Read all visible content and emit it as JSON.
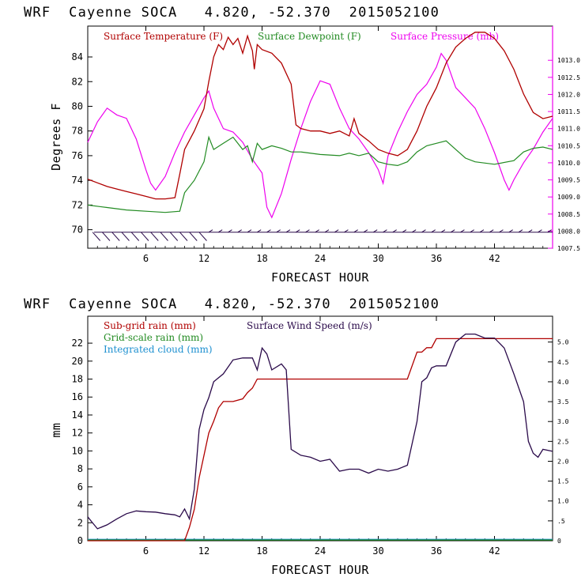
{
  "panels": [
    {
      "header": "WRF  Cayenne SOCA   4.820, -52.370  2015052100",
      "xlabel": "FORECAST HOUR",
      "ylabel": "Degrees F",
      "x_ticks": [
        "6",
        "12",
        "18",
        "24",
        "30",
        "36",
        "42"
      ],
      "y_ticks": [
        "70",
        "72",
        "74",
        "76",
        "78",
        "80",
        "82",
        "84"
      ],
      "y2_ticks": [
        "1007.5",
        "1008.0",
        "1008.5",
        "1009.0",
        "1009.5",
        "1010.0",
        "1010.5",
        "1011.0",
        "1011.5",
        "1012.0",
        "1012.5",
        "1013.0"
      ],
      "legend": [
        "Surface Temperature (F)",
        "Surface Dewpoint (F)",
        "Surface Pressure (mb)"
      ]
    },
    {
      "header": "WRF  Cayenne SOCA   4.820, -52.370  2015052100",
      "xlabel": "FORECAST HOUR",
      "ylabel": "mm",
      "x_ticks": [
        "6",
        "12",
        "18",
        "24",
        "30",
        "36",
        "42"
      ],
      "y_ticks": [
        "0",
        "2",
        "4",
        "6",
        "8",
        "10",
        "12",
        "14",
        "16",
        "18",
        "20",
        "22"
      ],
      "y2_ticks": [
        "0",
        ".5",
        "1.0",
        "1.5",
        "2.0",
        "2.5",
        "3.0",
        "3.5",
        "4.0",
        "4.5",
        "5.0"
      ],
      "legend": [
        "Sub-grid rain (mm)",
        "Grid-scale rain (mm)",
        "Integrated cloud (mm)",
        "Surface Wind Speed (m/s)"
      ]
    }
  ],
  "colors": {
    "temperature": "#b00000",
    "dewpoint": "#228b22",
    "pressure": "#ee00ee",
    "subgrid_rain": "#b00000",
    "gridscale_rain": "#228b22",
    "cloud": "#1e90d0",
    "wind": "#2a0a4a"
  },
  "chart_data": [
    {
      "type": "line",
      "title": "WRF  Cayenne SOCA   4.820, -52.370  2015052100",
      "xlabel": "FORECAST HOUR",
      "ylabel": "Degrees F",
      "xlim": [
        0,
        48
      ],
      "ylim": [
        68.5,
        86.5
      ],
      "y2lim": [
        1007.5,
        1014.0
      ],
      "series": [
        {
          "name": "Surface Temperature (F)",
          "axis": "left",
          "x": [
            0,
            1,
            2,
            3,
            4,
            5,
            6,
            7,
            8,
            9,
            9.5,
            10,
            11,
            12,
            12.5,
            13,
            13.5,
            14,
            14.5,
            15,
            15.5,
            16,
            16.5,
            17,
            17.2,
            17.5,
            18,
            19,
            20,
            21,
            21.5,
            22,
            23,
            24,
            25,
            26,
            27,
            27.5,
            28,
            29,
            30,
            31,
            32,
            33,
            34,
            35,
            36,
            37,
            38,
            39,
            40,
            41,
            42,
            43,
            44,
            45,
            46,
            47,
            48
          ],
          "y": [
            74.1,
            73.8,
            73.5,
            73.3,
            73.1,
            72.9,
            72.7,
            72.5,
            72.5,
            72.6,
            74.5,
            76.5,
            78.0,
            79.8,
            82.0,
            84.0,
            85.0,
            84.6,
            85.6,
            85.0,
            85.5,
            84.3,
            85.7,
            84.5,
            83.0,
            85.0,
            84.6,
            84.3,
            83.5,
            81.8,
            78.5,
            78.2,
            78.0,
            78.0,
            77.8,
            78.0,
            77.6,
            79.0,
            77.8,
            77.2,
            76.5,
            76.2,
            76.0,
            76.5,
            78.0,
            80.0,
            81.5,
            83.5,
            84.8,
            85.5,
            86.0,
            86.0,
            85.5,
            84.5,
            83.0,
            81.0,
            79.5,
            79.0,
            79.2
          ]
        },
        {
          "name": "Surface Dewpoint (F)",
          "axis": "left",
          "x": [
            0,
            2,
            4,
            6,
            8,
            9.5,
            10,
            11,
            12,
            12.5,
            13,
            14,
            15,
            16,
            16.5,
            17,
            17.5,
            18,
            19,
            20,
            21,
            22,
            24,
            26,
            27,
            28,
            29,
            30,
            31,
            32,
            33,
            34,
            35,
            36,
            37,
            38,
            39,
            40,
            42,
            44,
            45,
            46,
            47,
            48
          ],
          "y": [
            72.0,
            71.8,
            71.6,
            71.5,
            71.4,
            71.5,
            73.0,
            74.0,
            75.5,
            77.5,
            76.5,
            77.0,
            77.5,
            76.5,
            76.8,
            75.5,
            77.0,
            76.5,
            76.8,
            76.6,
            76.3,
            76.3,
            76.1,
            76.0,
            76.2,
            76.0,
            76.2,
            75.5,
            75.3,
            75.2,
            75.5,
            76.3,
            76.8,
            77.0,
            77.2,
            76.5,
            75.8,
            75.5,
            75.3,
            75.6,
            76.3,
            76.6,
            76.7,
            76.5
          ]
        },
        {
          "name": "Surface Pressure (mb)",
          "axis": "right",
          "x": [
            0,
            1,
            2,
            3,
            4,
            5,
            6,
            6.5,
            7,
            8,
            9,
            10,
            11,
            12,
            12.5,
            13,
            14,
            15,
            16,
            17,
            18,
            18.5,
            19,
            20,
            21,
            22,
            23,
            24,
            25,
            26,
            27,
            28,
            29,
            30,
            30.5,
            31,
            32,
            33,
            34,
            35,
            36,
            36.5,
            37,
            38,
            39,
            40,
            41,
            42,
            43,
            43.5,
            44,
            45,
            46,
            47,
            48
          ],
          "y": [
            1010.6,
            1011.2,
            1011.6,
            1011.4,
            1011.3,
            1010.7,
            1009.8,
            1009.4,
            1009.2,
            1009.6,
            1010.3,
            1010.9,
            1011.4,
            1011.9,
            1012.1,
            1011.6,
            1011.0,
            1010.9,
            1010.6,
            1010.1,
            1009.7,
            1008.7,
            1008.4,
            1009.1,
            1010.1,
            1011.0,
            1011.8,
            1012.4,
            1012.3,
            1011.6,
            1011.0,
            1010.7,
            1010.3,
            1009.8,
            1009.4,
            1010.2,
            1010.9,
            1011.5,
            1012.0,
            1012.3,
            1012.8,
            1013.2,
            1013.0,
            1012.2,
            1011.9,
            1011.6,
            1011.0,
            1010.3,
            1009.5,
            1009.2,
            1009.5,
            1010.0,
            1010.4,
            1010.9,
            1011.3
          ]
        }
      ],
      "wind_barbs": {
        "x_start": 0,
        "x_end": 48,
        "baseline": 69.8,
        "count": 48
      }
    },
    {
      "type": "line",
      "title": "WRF  Cayenne SOCA   4.820, -52.370  2015052100",
      "xlabel": "FORECAST HOUR",
      "ylabel": "mm",
      "xlim": [
        0,
        48
      ],
      "ylim": [
        0,
        25
      ],
      "y2lim": [
        0,
        5.65
      ],
      "series": [
        {
          "name": "Sub-grid rain (mm)",
          "axis": "left",
          "x": [
            0,
            10,
            10.5,
            11,
            11.5,
            12,
            12.5,
            13,
            13.5,
            14,
            15,
            16,
            16.5,
            17,
            17.5,
            18,
            20,
            24,
            30,
            33,
            34,
            34.5,
            35,
            35.5,
            36,
            48
          ],
          "y": [
            0,
            0,
            1.5,
            3.5,
            7.0,
            9.5,
            12.0,
            13.3,
            14.8,
            15.5,
            15.5,
            15.8,
            16.5,
            17.0,
            18.0,
            18.0,
            18.0,
            18.0,
            18.0,
            18.0,
            21.0,
            21.0,
            21.5,
            21.5,
            22.5,
            22.5
          ]
        },
        {
          "name": "Grid-scale rain (mm)",
          "axis": "left",
          "x": [
            0,
            48
          ],
          "y": [
            0.08,
            0.08
          ]
        },
        {
          "name": "Integrated cloud (mm)",
          "axis": "left",
          "x": [
            0,
            48
          ],
          "y": [
            0.15,
            0.15
          ]
        },
        {
          "name": "Surface Wind Speed (m/s)",
          "axis": "right",
          "x": [
            0,
            0.5,
            1,
            2,
            3,
            4,
            5,
            6,
            7,
            8,
            9,
            9.5,
            10,
            10.5,
            11,
            11.5,
            12,
            12.5,
            13,
            14,
            15,
            16,
            17,
            17.5,
            18,
            18.5,
            19,
            20,
            20.5,
            21,
            22,
            23,
            24,
            25,
            26,
            27,
            28,
            29,
            30,
            31,
            32,
            33,
            34,
            34.5,
            35,
            35.5,
            36,
            37,
            38,
            39,
            40,
            41,
            42,
            43,
            44,
            45,
            45.5,
            46,
            46.5,
            47,
            48
          ],
          "y": [
            0.6,
            0.45,
            0.3,
            0.4,
            0.55,
            0.68,
            0.75,
            0.73,
            0.72,
            0.68,
            0.65,
            0.6,
            0.8,
            0.55,
            1.3,
            2.8,
            3.3,
            3.6,
            4.0,
            4.2,
            4.55,
            4.6,
            4.6,
            4.3,
            4.85,
            4.7,
            4.3,
            4.45,
            4.3,
            2.3,
            2.15,
            2.1,
            2.0,
            2.05,
            1.75,
            1.8,
            1.8,
            1.7,
            1.8,
            1.75,
            1.8,
            1.9,
            3.0,
            4.0,
            4.1,
            4.35,
            4.4,
            4.4,
            5.0,
            5.2,
            5.2,
            5.1,
            5.1,
            4.85,
            4.2,
            3.5,
            2.5,
            2.2,
            2.1,
            2.3,
            2.25
          ]
        }
      ]
    }
  ]
}
